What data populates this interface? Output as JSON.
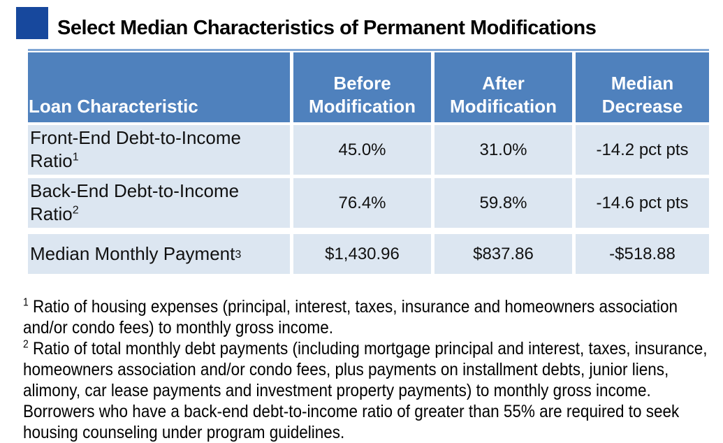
{
  "title": "Select Median Characteristics of Permanent Modifications",
  "colors": {
    "title_square": "#17489D",
    "header_bg": "#4F81BD",
    "header_text": "#FFFFFF",
    "row_bg": "#DCE6F1",
    "body_text": "#000000",
    "table_topline": "#7FA6D4"
  },
  "table": {
    "header": {
      "loan_characteristic": "Loan Characteristic",
      "before": "Before Modification",
      "after": "After Modification",
      "decrease": "Median Decrease"
    },
    "rows": [
      {
        "label": "Front-End Debt-to-Income Ratio",
        "footnote_ref": "1",
        "before": "45.0%",
        "after": "31.0%",
        "decrease": "-14.2 pct pts"
      },
      {
        "label": "Back-End Debt-to-Income Ratio",
        "footnote_ref": "2",
        "before": "76.4%",
        "after": "59.8%",
        "decrease": "-14.6 pct pts"
      },
      {
        "label": "Median Monthly Payment",
        "footnote_ref": "3",
        "before": "$1,430.96",
        "after": "$837.86",
        "decrease": "-$518.88"
      }
    ]
  },
  "footnotes": [
    {
      "ref": "1",
      "text": "Ratio of housing expenses (principal, interest, taxes, insurance and homeowners association and/or condo fees) to monthly gross income."
    },
    {
      "ref": "2",
      "text": "Ratio of total monthly debt payments (including  mortgage principal and interest, taxes, insurance, homeowners association and/or condo fees, plus payments on installment debts, junior liens, alimony, car lease payments and investment property payments) to monthly gross income. Borrowers who have a back-end debt-to-income ratio of greater than 55% are required to seek housing counseling under program guidelines."
    }
  ]
}
